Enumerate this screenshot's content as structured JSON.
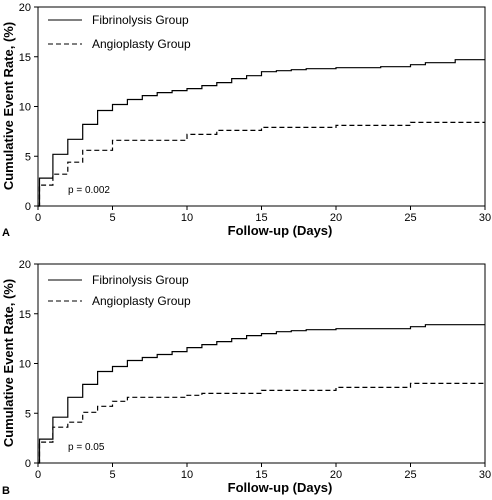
{
  "chart_data": [
    {
      "panel": "A",
      "type": "line",
      "step": true,
      "xlabel": "Follow-up (Days)",
      "ylabel": "Cumulative Event Rate, (%)",
      "xlim": [
        0,
        30
      ],
      "ylim": [
        0,
        20
      ],
      "xticks": [
        0,
        5,
        10,
        15,
        20,
        25,
        30
      ],
      "yticks": [
        0,
        5,
        10,
        15,
        20
      ],
      "legend_position": "top-left",
      "annotation": "p = 0.002",
      "series": [
        {
          "name": "Fibrinolysis Group",
          "style": "solid",
          "x": [
            0,
            0.1,
            0.2,
            1,
            2,
            3,
            4,
            5,
            6,
            7,
            8,
            9,
            10,
            11,
            12,
            13,
            14,
            15,
            16,
            17,
            18,
            20,
            23,
            25,
            26,
            28,
            30
          ],
          "y": [
            0,
            2.8,
            2.8,
            5.2,
            6.7,
            8.2,
            9.6,
            10.2,
            10.7,
            11.1,
            11.4,
            11.6,
            11.8,
            12.1,
            12.4,
            12.8,
            13.1,
            13.5,
            13.6,
            13.7,
            13.8,
            13.9,
            14.0,
            14.2,
            14.4,
            14.7,
            14.7
          ]
        },
        {
          "name": "Angioplasty Group",
          "style": "dashed",
          "x": [
            0,
            0.1,
            0.2,
            1,
            2,
            3,
            5,
            10,
            12,
            15,
            20,
            25,
            30
          ],
          "y": [
            0,
            1.9,
            2.1,
            3.2,
            4.4,
            5.6,
            6.6,
            7.2,
            7.6,
            7.9,
            8.1,
            8.4,
            8.4
          ]
        }
      ]
    },
    {
      "panel": "B",
      "type": "line",
      "step": true,
      "xlabel": "Follow-up (Days)",
      "ylabel": "Cumulative Event Rate, (%)",
      "xlim": [
        0,
        30
      ],
      "ylim": [
        0,
        20
      ],
      "xticks": [
        0,
        5,
        10,
        15,
        20,
        25,
        30
      ],
      "yticks": [
        0,
        5,
        10,
        15,
        20
      ],
      "legend_position": "top-left",
      "annotation": "p = 0.05",
      "series": [
        {
          "name": "Fibrinolysis Group",
          "style": "solid",
          "x": [
            0,
            0.1,
            0.2,
            1,
            2,
            3,
            4,
            5,
            6,
            7,
            8,
            9,
            10,
            11,
            12,
            13,
            14,
            15,
            16,
            17,
            18,
            20,
            25,
            26,
            30
          ],
          "y": [
            0,
            2.4,
            2.4,
            4.6,
            6.6,
            7.9,
            9.2,
            9.7,
            10.3,
            10.6,
            10.9,
            11.2,
            11.6,
            11.9,
            12.2,
            12.5,
            12.8,
            13.0,
            13.2,
            13.3,
            13.4,
            13.5,
            13.7,
            13.9,
            13.9
          ]
        },
        {
          "name": "Angioplasty Group",
          "style": "dashed",
          "x": [
            0,
            0.1,
            0.2,
            1,
            2,
            3,
            4,
            5,
            6,
            10,
            11,
            15,
            20,
            25,
            30
          ],
          "y": [
            0,
            1.9,
            2.1,
            3.6,
            4.1,
            5.1,
            5.7,
            6.2,
            6.6,
            6.8,
            7.0,
            7.3,
            7.6,
            8.0,
            8.0
          ]
        }
      ]
    }
  ]
}
